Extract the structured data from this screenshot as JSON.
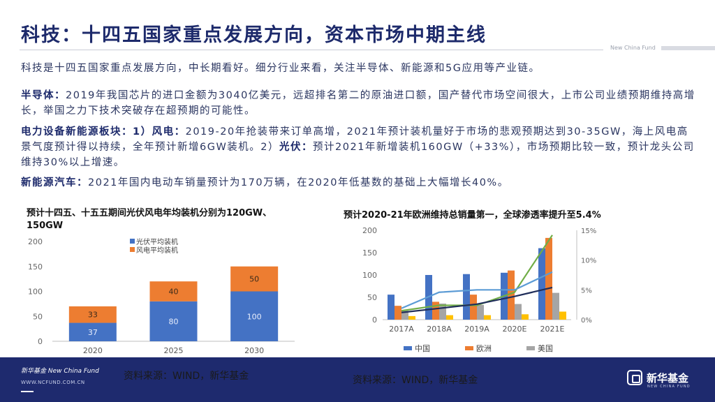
{
  "header": {
    "title": "科技：十四五国家重点发展方向，资本市场中期主线",
    "brand_small": "New China Fund"
  },
  "intro": "科技是十四五国家重点发展方向，中长期看好。细分行业来看，关注半导体、新能源和5G应用等产业链。",
  "sections": {
    "semi_label": "半导体：",
    "semi_text": "2019年我国芯片的进口金额为3040亿美元，远超排名第二的原油进口额，国产替代市场空间很大，上市公司业绩预期维持高增长，举国之力下技术突破存在超预期的可能性。",
    "power_label": "电力设备新能源板块：1）风电：",
    "power_text1": "2019-20年抢装带来订单高增，2021年预计装机量好于市场的悲观预期达到30-35GW，海上风电高景气度预计得以持续，全年预计新增6GW装机。2）",
    "solar_label": "光伏：",
    "power_text2": "预计2021年新增装机160GW（+33%），市场预期比较一致，预计龙头公司维持30%以上增速。",
    "ev_label": "新能源汽车：",
    "ev_text": "2021年国内电动车销量预计为170万辆，在2020年低基数的基础上大幅增长40%。"
  },
  "chart_data": [
    {
      "type": "bar",
      "stacked": true,
      "title": "预计十四五、十五五期间光伏风电年均装机分别为120GW、150GW",
      "categories": [
        "2020",
        "2025",
        "2030"
      ],
      "series": [
        {
          "name": "光伏平均装机",
          "values": [
            37,
            80,
            100
          ],
          "color": "#4472c4"
        },
        {
          "name": "风电平均装机",
          "values": [
            33,
            40,
            50
          ],
          "color": "#ed7d31"
        }
      ],
      "ylim": [
        0,
        200
      ],
      "yticks": [
        0,
        50,
        100,
        150,
        200
      ],
      "legend": "top-left",
      "grid": false
    },
    {
      "type": "bar",
      "title": "预计2020-21年欧洲维持总销量第一，全球渗透率提升至5.4%",
      "categories": [
        "2017A",
        "2018A",
        "2019A",
        "2020E",
        "2021E"
      ],
      "series": [
        {
          "name": "中国",
          "values": [
            56,
            100,
            102,
            105,
            160
          ],
          "color": "#4472c4"
        },
        {
          "name": "欧洲",
          "values": [
            31,
            40,
            56,
            110,
            183
          ],
          "color": "#ed7d31"
        },
        {
          "name": "美国",
          "values": [
            20,
            36,
            33,
            35,
            60
          ],
          "color": "#a5a5a5"
        },
        {
          "name": "",
          "values": [
            8,
            10,
            10,
            12,
            18
          ],
          "color": "#ffc000"
        }
      ],
      "lines": [
        {
          "name": "",
          "values": [
            1.5,
            2.4,
            2.4,
            4.6,
            14.2
          ],
          "color": "#70ad47",
          "axis": "right"
        },
        {
          "name": "",
          "values": [
            1.9,
            4.6,
            5.0,
            5.0,
            8.0
          ],
          "color": "#5b9bd5",
          "axis": "right"
        },
        {
          "name": "",
          "values": [
            1.2,
            1.9,
            2.6,
            3.9,
            5.4
          ],
          "color": "#1f2d5a",
          "axis": "right"
        }
      ],
      "ylim": [
        0,
        200
      ],
      "yticks": [
        0,
        50,
        100,
        150,
        200
      ],
      "y2lim": [
        0,
        15
      ],
      "y2ticks": [
        "0%",
        "5%",
        "10%",
        "15%"
      ],
      "legend": "bottom",
      "grid": false
    }
  ],
  "footer": {
    "brand": "新华基金 New China Fund",
    "url": "WWW.NCFUND.COM.CN",
    "source_left": "资料来源：WIND，新华基金",
    "source_right": "资料来源：WIND，新华基金",
    "logo_text": "新华基金",
    "logo_sub": "NEW CHINA FUND"
  }
}
